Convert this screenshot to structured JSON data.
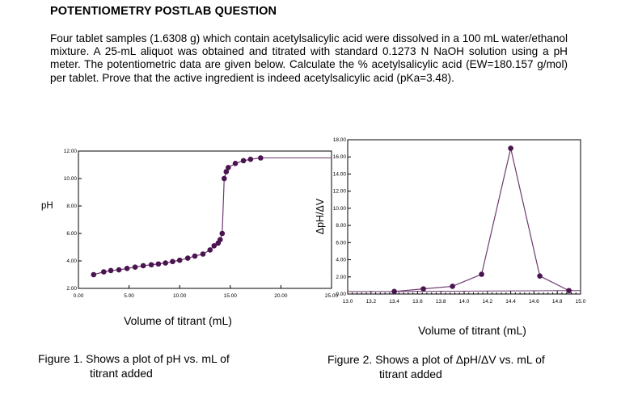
{
  "document": {
    "title": "POTENTIOMETRY POSTLAB QUESTION",
    "problem": "Four tablet samples (1.6308 g) which contain acetylsalicylic acid were dissolved in a 100 mL water/ethanol mixture.  A 25-mL aliquot was obtained and titrated with standard 0.1273 N NaOH solution using a pH meter.  The potentiometric data are given below.  Calculate the % acetylsalicylic acid (EW=180.157 g/mol) per tablet.  Prove that the active ingredient is indeed acetylsalicylic acid (pKa=3.48)."
  },
  "figures": [
    {
      "caption_line1": "Figure 1. Shows a plot of pH vs. mL of",
      "caption_line2": "titrant added"
    },
    {
      "caption_line1": "Figure 2. Shows a plot of ΔpH/ΔV vs. mL of",
      "caption_line2": "titrant added"
    }
  ],
  "chart_data": [
    {
      "type": "line",
      "xlabel": "Volume of titrant (mL)",
      "ylabel": "pH",
      "xlim": [
        0,
        25
      ],
      "ylim": [
        2,
        12
      ],
      "x_ticks": [
        "0.00",
        "5.00",
        "10.00",
        "15.00",
        "20.00",
        "25.00"
      ],
      "y_ticks": [
        "2.00",
        "4.00",
        "6.00",
        "8.00",
        "10.00",
        "12.00"
      ],
      "line_color": "#6e3a6e",
      "marker_color": "#4a1450",
      "grid": false,
      "x": [
        1.5,
        2.5,
        3.2,
        4.0,
        4.8,
        5.6,
        6.4,
        7.2,
        7.9,
        8.6,
        9.3,
        10.0,
        10.8,
        11.5,
        12.3,
        13.0,
        13.4,
        13.8,
        14.0,
        14.2,
        14.4,
        14.6,
        14.8,
        15.5,
        16.3,
        17.0,
        18.0
      ],
      "y": [
        3.0,
        3.2,
        3.3,
        3.35,
        3.45,
        3.55,
        3.65,
        3.72,
        3.78,
        3.85,
        3.95,
        4.05,
        4.2,
        4.35,
        4.5,
        4.8,
        5.1,
        5.3,
        5.55,
        6.0,
        10.0,
        10.5,
        10.8,
        11.1,
        11.3,
        11.4,
        11.5
      ],
      "tail": {
        "x": [
          18.0,
          25.0
        ],
        "y": [
          11.5,
          11.5
        ]
      }
    },
    {
      "type": "line",
      "xlabel": "Volume of titrant (mL)",
      "ylabel": "ΔpH/ΔV",
      "xlim": [
        13.0,
        15.0
      ],
      "ylim": [
        0,
        18
      ],
      "x_ticks": [
        "13.0",
        "13.2",
        "13.4",
        "13.6",
        "13.8",
        "14.0",
        "14.2",
        "14.4",
        "14.6",
        "14.8",
        "15.0"
      ],
      "y_ticks": [
        "0.00",
        "2.00",
        "4.00",
        "6.00",
        "8.00",
        "10.00",
        "12.00",
        "14.00",
        "16.00",
        "18.00"
      ],
      "line_color": "#6e3a6e",
      "marker_color": "#4a1450",
      "grid": false,
      "x": [
        13.4,
        13.65,
        13.9,
        14.15,
        14.4,
        14.65,
        14.9
      ],
      "y": [
        0.3,
        0.6,
        0.9,
        2.3,
        17.0,
        2.1,
        0.4
      ],
      "tail": {
        "x": [
          13.0,
          13.4,
          14.9,
          15.0
        ],
        "y": [
          0.3,
          0.3,
          0.4,
          0.4
        ]
      }
    }
  ]
}
